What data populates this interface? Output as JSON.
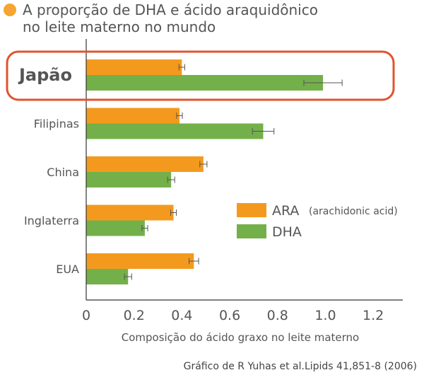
{
  "chart_data": {
    "type": "bar",
    "orientation": "horizontal",
    "title_lines": [
      "A proporção de DHA e ácido araquidônico",
      "no leite materno no mundo"
    ],
    "categories": [
      "Japão",
      "Filipinas",
      "China",
      "Inglaterra",
      "EUA"
    ],
    "highlighted_category": "Japão",
    "series": [
      {
        "name": "ARA",
        "description": "(arachidonic acid)",
        "color": "#f39a1e",
        "values": [
          0.4,
          0.39,
          0.49,
          0.365,
          0.45
        ],
        "errors": [
          0.012,
          0.012,
          0.015,
          0.012,
          0.02
        ]
      },
      {
        "name": "DHA",
        "color": "#74b04a",
        "values": [
          0.99,
          0.74,
          0.355,
          0.245,
          0.175
        ],
        "errors": [
          0.08,
          0.045,
          0.015,
          0.012,
          0.015
        ]
      }
    ],
    "xlim": [
      0,
      1.3
    ],
    "xticks": [
      "0",
      "0.2",
      "0.4",
      "0.6",
      "0.8",
      "1.0",
      "1.2"
    ],
    "xlabel": "Composição do ácido graxo no leite materno",
    "source": "Gráfico de R Yuhas et al.Lipids 41,851-8 (2006)",
    "legend_position": "right-middle",
    "title_marker_color": "#f5a532",
    "highlight_color": "#e0542e"
  }
}
